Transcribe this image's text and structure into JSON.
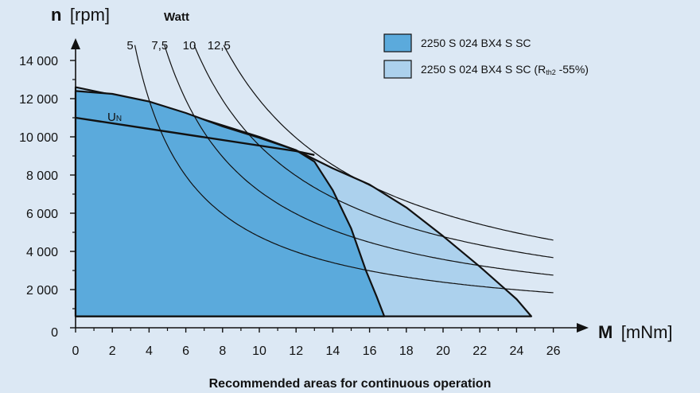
{
  "chart_data": {
    "type": "area",
    "caption": "Recommended areas for continuous operation",
    "xaxis": {
      "symbol": "M",
      "unit": "[mNm]",
      "range": [
        0,
        26
      ],
      "ticks": [
        0,
        2,
        4,
        6,
        8,
        10,
        12,
        14,
        16,
        18,
        20,
        22,
        24,
        26
      ],
      "tick_labels": [
        "0",
        "2",
        "4",
        "6",
        "8",
        "10",
        "12",
        "14",
        "16",
        "18",
        "20",
        "22",
        "24",
        "26"
      ]
    },
    "yaxis": {
      "symbol": "n",
      "unit": "[rpm]",
      "range": [
        0,
        14000
      ],
      "ticks": [
        0,
        2000,
        4000,
        6000,
        8000,
        10000,
        12000,
        14000
      ],
      "tick_labels": [
        "0",
        "2 000",
        "4 000",
        "6 000",
        "8 000",
        "10 000",
        "12 000",
        "14 000"
      ]
    },
    "power_curves": {
      "header": "Watt",
      "labels": [
        "5",
        "7,5",
        "10",
        "12,5"
      ],
      "watts": [
        5,
        7.5,
        10,
        12.5
      ]
    },
    "voltage_line": {
      "label": "U",
      "label_sub": "N",
      "points": [
        [
          0,
          11000
        ],
        [
          12,
          9250
        ],
        [
          13,
          9050
        ]
      ]
    },
    "series": [
      {
        "name": "2250 S 024 BX4 S SC",
        "color": "#5baadc",
        "points": [
          [
            0,
            600
          ],
          [
            0,
            12400
          ],
          [
            2,
            12250
          ],
          [
            4,
            11850
          ],
          [
            6,
            11250
          ],
          [
            8,
            10550
          ],
          [
            10,
            9950
          ],
          [
            12,
            9300
          ],
          [
            13,
            8700
          ],
          [
            14,
            7200
          ],
          [
            15,
            5200
          ],
          [
            15.8,
            3000
          ],
          [
            16.4,
            1600
          ],
          [
            16.8,
            600
          ]
        ]
      },
      {
        "name": "2250 S 024 BX4 S SC (R",
        "name_sub": "th2",
        "name_suffix": " -55%)",
        "color": "#acd1ed",
        "points": [
          [
            0,
            600
          ],
          [
            0,
            12600
          ],
          [
            4,
            11800
          ],
          [
            8,
            10600
          ],
          [
            10,
            10000
          ],
          [
            12,
            9300
          ],
          [
            14,
            8350
          ],
          [
            16,
            7500
          ],
          [
            18,
            6300
          ],
          [
            20,
            4800
          ],
          [
            22,
            3200
          ],
          [
            24,
            1500
          ],
          [
            24.8,
            600
          ]
        ]
      }
    ],
    "grid": false,
    "legend_position": "top-right",
    "colors": {
      "background": "#dce8f4",
      "line": "#111111"
    }
  }
}
